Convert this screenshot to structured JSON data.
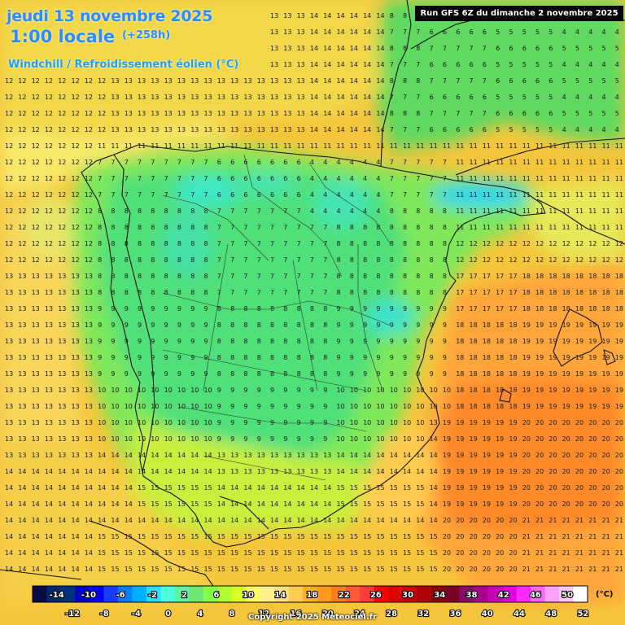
{
  "header": {
    "date": "jeudi 13 novembre 2025",
    "time": "1:00 locale",
    "lead": "(+258h)",
    "variable": "Windchill / Refroidissement éolien (°C)",
    "run": "Run GFS 6Z du dimanche 2 novembre 2025"
  },
  "legend": {
    "unit": "(°C)",
    "top_labels": [
      "-14",
      "-10",
      "-6",
      "-2",
      "2",
      "6",
      "10",
      "14",
      "18",
      "22",
      "26",
      "30",
      "34",
      "38",
      "42",
      "46",
      "50"
    ],
    "bottom_labels": [
      "-12",
      "-8",
      "-4",
      "0",
      "4",
      "8",
      "12",
      "16",
      "20",
      "24",
      "28",
      "32",
      "36",
      "40",
      "44",
      "48",
      "52"
    ],
    "colors": [
      "#0a0a46",
      "#002a70",
      "#00317f",
      "#0000c8",
      "#0000f4",
      "#1a3cff",
      "#0080ff",
      "#00b0ff",
      "#26e0ff",
      "#4dfcdc",
      "#5cf2a0",
      "#6ee870",
      "#82ff46",
      "#b0ff30",
      "#dcff28",
      "#ffff64",
      "#fff089",
      "#ffe07a",
      "#ffcc50",
      "#ffb020",
      "#ff9a18",
      "#ff7a18",
      "#ff5a3a",
      "#ff3a3a",
      "#ff0000",
      "#e10000",
      "#c80000",
      "#b0000a",
      "#8c0000",
      "#7a0028",
      "#8a0a6a",
      "#a8008c",
      "#c800b8",
      "#e000e0",
      "#ff28ff",
      "#ff64ff",
      "#ffa0ff",
      "#ffc8ff",
      "#ffffff"
    ]
  },
  "footer": {
    "copyright": "Copyright 2025 Meteociel.fr"
  }
}
